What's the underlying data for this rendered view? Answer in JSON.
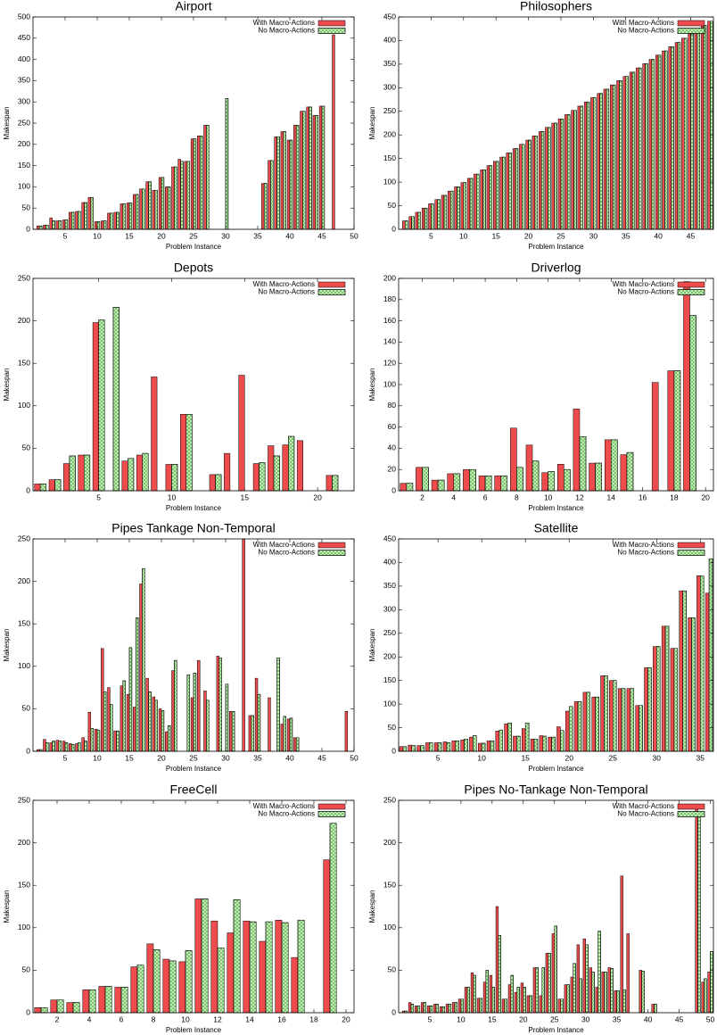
{
  "chart_data": [
    {
      "type": "bar",
      "title": "Airport",
      "x_label": "Problem Instance",
      "y_label": "Makespan",
      "legend": "upper right",
      "x": [
        1,
        2,
        3,
        4,
        5,
        6,
        7,
        8,
        9,
        10,
        11,
        12,
        13,
        14,
        15,
        16,
        17,
        18,
        19,
        20,
        21,
        22,
        23,
        24,
        25,
        26,
        27,
        28,
        29,
        30,
        31,
        32,
        33,
        34,
        35,
        36,
        37,
        38,
        39,
        40,
        41,
        42,
        43,
        44,
        45,
        46,
        47
      ],
      "series": [
        {
          "name": "With Macro-Actions",
          "color": "#ee4c4c",
          "hatch": false,
          "values": [
            8,
            10,
            27,
            20,
            22,
            40,
            42,
            63,
            75,
            18,
            20,
            38,
            40,
            60,
            62,
            82,
            95,
            112,
            92,
            122,
            100,
            147,
            165,
            160,
            213,
            220,
            245,
            null,
            null,
            null,
            null,
            null,
            null,
            null,
            null,
            108,
            162,
            218,
            230,
            210,
            245,
            278,
            288,
            268,
            290,
            null,
            458
          ]
        },
        {
          "name": "No Macro-Actions",
          "color": "#ccf5b8",
          "hatch": true,
          "values": [
            8,
            10,
            20,
            20,
            22,
            40,
            42,
            63,
            75,
            18,
            20,
            38,
            40,
            60,
            62,
            82,
            95,
            112,
            92,
            122,
            100,
            147,
            160,
            160,
            213,
            220,
            245,
            null,
            null,
            308,
            null,
            null,
            null,
            null,
            null,
            108,
            162,
            218,
            230,
            210,
            245,
            278,
            288,
            268,
            290,
            null,
            null
          ]
        }
      ],
      "xlim": [
        0,
        50
      ],
      "xticks": [
        5,
        10,
        15,
        20,
        25,
        30,
        35,
        40,
        45,
        50
      ],
      "ylim": [
        0,
        500
      ],
      "yticks": [
        0,
        50,
        100,
        150,
        200,
        250,
        300,
        350,
        400,
        450,
        500
      ]
    },
    {
      "type": "bar",
      "title": "Philosophers",
      "x_label": "Problem Instance",
      "y_label": "Makespan",
      "legend": "upper right",
      "x": [
        1,
        2,
        3,
        4,
        5,
        6,
        7,
        8,
        9,
        10,
        11,
        12,
        13,
        14,
        15,
        16,
        17,
        18,
        19,
        20,
        21,
        22,
        23,
        24,
        25,
        26,
        27,
        28,
        29,
        30,
        31,
        32,
        33,
        34,
        35,
        36,
        37,
        38,
        39,
        40,
        41,
        42,
        43,
        44,
        45,
        46,
        47,
        48
      ],
      "series": [
        {
          "name": "With Macro-Actions",
          "color": "#ee4c4c",
          "hatch": false,
          "values": [
            18,
            27,
            36,
            45,
            54,
            63,
            72,
            81,
            90,
            99,
            108,
            117,
            126,
            135,
            144,
            153,
            162,
            171,
            180,
            189,
            198,
            207,
            216,
            225,
            234,
            243,
            252,
            261,
            270,
            279,
            288,
            297,
            306,
            315,
            324,
            333,
            342,
            351,
            360,
            369,
            378,
            387,
            396,
            405,
            414,
            423,
            432,
            441
          ]
        },
        {
          "name": "No Macro-Actions",
          "color": "#ccf5b8",
          "hatch": true,
          "values": [
            18,
            27,
            36,
            45,
            54,
            63,
            72,
            81,
            90,
            99,
            108,
            117,
            126,
            135,
            144,
            153,
            162,
            171,
            180,
            189,
            198,
            207,
            216,
            225,
            234,
            243,
            252,
            261,
            270,
            279,
            288,
            297,
            306,
            315,
            324,
            333,
            342,
            351,
            360,
            369,
            378,
            387,
            396,
            405,
            414,
            423,
            432,
            441
          ]
        }
      ],
      "xlim": [
        0,
        48.5
      ],
      "xticks": [
        5,
        10,
        15,
        20,
        25,
        30,
        35,
        40,
        45
      ],
      "ylim": [
        0,
        450
      ],
      "yticks": [
        0,
        50,
        100,
        150,
        200,
        250,
        300,
        350,
        400,
        450
      ]
    },
    {
      "type": "bar",
      "title": "Depots",
      "x_label": "Problem Instance",
      "y_label": "Makespan",
      "legend": "upper right",
      "x": [
        1,
        2,
        3,
        4,
        5,
        6,
        7,
        8,
        9,
        10,
        11,
        12,
        13,
        14,
        15,
        16,
        17,
        18,
        19,
        20,
        21
      ],
      "series": [
        {
          "name": "With Macro-Actions",
          "color": "#ee4c4c",
          "hatch": false,
          "values": [
            8,
            13,
            32,
            42,
            198,
            null,
            35,
            42,
            134,
            31,
            90,
            null,
            19,
            44,
            136,
            32,
            53,
            54,
            59,
            null,
            18
          ]
        },
        {
          "name": "No Macro-Actions",
          "color": "#ccf5b8",
          "hatch": true,
          "values": [
            8,
            13,
            41,
            42,
            201,
            216,
            38,
            44,
            null,
            31,
            90,
            null,
            19,
            null,
            null,
            33,
            41,
            64,
            null,
            null,
            18
          ]
        }
      ],
      "xlim": [
        0.5,
        22.5
      ],
      "xticks": [
        5,
        10,
        15,
        20
      ],
      "ylim": [
        0,
        250
      ],
      "yticks": [
        0,
        50,
        100,
        150,
        200,
        250
      ]
    },
    {
      "type": "bar",
      "title": "Driverlog",
      "x_label": "Problem Instance",
      "y_label": "Makespan",
      "legend": "upper right",
      "x": [
        1,
        2,
        3,
        4,
        5,
        6,
        7,
        8,
        9,
        10,
        11,
        12,
        13,
        14,
        15,
        16,
        17,
        18,
        19,
        20
      ],
      "series": [
        {
          "name": "With Macro-Actions",
          "color": "#ee4c4c",
          "hatch": false,
          "values": [
            7,
            22,
            10,
            16,
            20,
            14,
            14,
            59,
            43,
            17,
            25,
            77,
            26,
            48,
            34,
            null,
            102,
            113,
            197,
            null
          ]
        },
        {
          "name": "No Macro-Actions",
          "color": "#ccf5b8",
          "hatch": true,
          "values": [
            7,
            22,
            10,
            16,
            20,
            14,
            14,
            22,
            28,
            18,
            20,
            51,
            26,
            48,
            36,
            null,
            null,
            113,
            165,
            null
          ]
        }
      ],
      "xlim": [
        0.5,
        20.5
      ],
      "xticks": [
        2,
        4,
        6,
        8,
        10,
        12,
        14,
        16,
        18,
        20
      ],
      "ylim": [
        0,
        200
      ],
      "yticks": [
        0,
        20,
        40,
        60,
        80,
        100,
        120,
        140,
        160,
        180,
        200
      ]
    },
    {
      "type": "bar",
      "title": "Pipes Tankage Non-Temporal",
      "x_label": "Problem Instance",
      "y_label": "Makespan",
      "legend": "upper right",
      "x": [
        1,
        2,
        3,
        4,
        5,
        6,
        7,
        8,
        9,
        10,
        11,
        12,
        13,
        14,
        15,
        16,
        17,
        18,
        19,
        20,
        21,
        22,
        23,
        24,
        25,
        26,
        27,
        28,
        29,
        30,
        31,
        32,
        33,
        34,
        35,
        36,
        37,
        38,
        39,
        40,
        41,
        42,
        43,
        44,
        45,
        46,
        47,
        48,
        49
      ],
      "series": [
        {
          "name": "With Macro-Actions",
          "color": "#ee4c4c",
          "hatch": false,
          "values": [
            2,
            14,
            10,
            13,
            12,
            9,
            9,
            16,
            46,
            26,
            121,
            75,
            24,
            77,
            67,
            52,
            197,
            86,
            64,
            50,
            23,
            95,
            null,
            null,
            63,
            107,
            71,
            null,
            112,
            null,
            47,
            null,
            250,
            42,
            86,
            null,
            63,
            null,
            32,
            38,
            16,
            null,
            null,
            null,
            null,
            null,
            null,
            null,
            47
          ]
        },
        {
          "name": "No Macro-Actions",
          "color": "#ccf5b8",
          "hatch": true,
          "values": [
            2,
            10,
            12,
            12,
            10,
            8,
            10,
            12,
            27,
            25,
            70,
            55,
            24,
            83,
            122,
            157,
            215,
            70,
            60,
            48,
            30,
            107,
            null,
            90,
            92,
            null,
            60,
            null,
            110,
            79,
            47,
            null,
            null,
            42,
            67,
            null,
            null,
            110,
            41,
            39,
            16,
            null,
            null,
            null,
            null,
            null,
            null,
            null,
            null
          ]
        }
      ],
      "xlim": [
        0,
        50
      ],
      "xticks": [
        5,
        10,
        15,
        20,
        25,
        30,
        35,
        40,
        45,
        50
      ],
      "ylim": [
        0,
        250
      ],
      "yticks": [
        0,
        50,
        100,
        150,
        200,
        250
      ]
    },
    {
      "type": "bar",
      "title": "Satellite",
      "x_label": "Problem Instance",
      "y_label": "Makespan",
      "legend": "upper right",
      "x": [
        1,
        2,
        3,
        4,
        5,
        6,
        7,
        8,
        9,
        10,
        11,
        12,
        13,
        14,
        15,
        16,
        17,
        18,
        19,
        20,
        21,
        22,
        23,
        24,
        25,
        26,
        27,
        28,
        29,
        30,
        31,
        32,
        33,
        34,
        35,
        36
      ],
      "series": [
        {
          "name": "With Macro-Actions",
          "color": "#ee4c4c",
          "hatch": false,
          "values": [
            10,
            13,
            12,
            18,
            18,
            20,
            22,
            24,
            30,
            17,
            22,
            43,
            58,
            32,
            48,
            26,
            33,
            30,
            52,
            85,
            105,
            125,
            115,
            160,
            150,
            133,
            133,
            97,
            177,
            222,
            265,
            218,
            340,
            283,
            372,
            335
          ]
        },
        {
          "name": "No Macro-Actions",
          "color": "#ccf5b8",
          "hatch": true,
          "values": [
            10,
            12,
            12,
            18,
            18,
            18,
            22,
            26,
            33,
            17,
            22,
            45,
            60,
            32,
            60,
            26,
            32,
            30,
            44,
            95,
            105,
            125,
            115,
            160,
            150,
            133,
            133,
            97,
            177,
            222,
            265,
            218,
            340,
            283,
            372,
            408
          ]
        }
      ],
      "xlim": [
        0.5,
        36.5
      ],
      "xticks": [
        5,
        10,
        15,
        20,
        25,
        30,
        35
      ],
      "ylim": [
        0,
        450
      ],
      "yticks": [
        0,
        50,
        100,
        150,
        200,
        250,
        300,
        350,
        400,
        450
      ]
    },
    {
      "type": "bar",
      "title": "FreeCell",
      "x_label": "Problem Instance",
      "y_label": "Makespan",
      "legend": "upper right",
      "x": [
        1,
        2,
        3,
        4,
        5,
        6,
        7,
        8,
        9,
        10,
        11,
        12,
        13,
        14,
        15,
        16,
        17,
        18,
        19,
        20
      ],
      "series": [
        {
          "name": "With Macro-Actions",
          "color": "#ee4c4c",
          "hatch": false,
          "values": [
            6,
            15,
            12,
            27,
            31,
            30,
            54,
            81,
            63,
            60,
            134,
            108,
            94,
            108,
            84,
            109,
            65,
            null,
            180,
            null
          ]
        },
        {
          "name": "No Macro-Actions",
          "color": "#ccf5b8",
          "hatch": true,
          "values": [
            6,
            15,
            12,
            27,
            31,
            30,
            56,
            74,
            61,
            73,
            134,
            76,
            133,
            107,
            107,
            106,
            109,
            null,
            223,
            null
          ]
        }
      ],
      "xlim": [
        0.5,
        20.5
      ],
      "xticks": [
        2,
        4,
        6,
        8,
        10,
        12,
        14,
        16,
        18,
        20
      ],
      "ylim": [
        0,
        250
      ],
      "yticks": [
        0,
        50,
        100,
        150,
        200,
        250
      ]
    },
    {
      "type": "bar",
      "title": "Pipes No-Tankage Non-Temporal",
      "x_label": "Problem Instance",
      "y_label": "Makespan",
      "legend": "upper right",
      "x": [
        1,
        2,
        3,
        4,
        5,
        6,
        7,
        8,
        9,
        10,
        11,
        12,
        13,
        14,
        15,
        16,
        17,
        18,
        19,
        20,
        21,
        22,
        23,
        24,
        25,
        26,
        27,
        28,
        29,
        30,
        31,
        32,
        33,
        34,
        35,
        36,
        37,
        38,
        39,
        40,
        41,
        42,
        43,
        44,
        45,
        46,
        47,
        48,
        49,
        50
      ],
      "series": [
        {
          "name": "With Macro-Actions",
          "color": "#ee4c4c",
          "hatch": false,
          "values": [
            2,
            12,
            8,
            12,
            8,
            10,
            7,
            10,
            12,
            16,
            30,
            47,
            17,
            36,
            44,
            125,
            16,
            33,
            24,
            35,
            20,
            53,
            20,
            70,
            93,
            16,
            33,
            42,
            80,
            87,
            53,
            30,
            48,
            53,
            26,
            161,
            93,
            null,
            50,
            null,
            10,
            null,
            null,
            null,
            null,
            null,
            null,
            243,
            36,
            48
          ]
        },
        {
          "name": "No Macro-Actions",
          "color": "#ccf5b8",
          "hatch": true,
          "values": [
            2,
            10,
            8,
            12,
            8,
            10,
            7,
            10,
            12,
            16,
            30,
            44,
            17,
            50,
            30,
            91,
            16,
            44,
            30,
            30,
            20,
            53,
            53,
            70,
            102,
            16,
            33,
            58,
            40,
            80,
            48,
            96,
            48,
            52,
            26,
            27,
            null,
            null,
            49,
            null,
            10,
            null,
            null,
            null,
            null,
            null,
            null,
            235,
            40,
            72
          ]
        }
      ],
      "xlim": [
        0,
        50.5
      ],
      "xticks": [
        5,
        10,
        15,
        20,
        25,
        30,
        35,
        40,
        45,
        50
      ],
      "ylim": [
        0,
        250
      ],
      "yticks": [
        0,
        50,
        100,
        150,
        200,
        250
      ]
    }
  ]
}
